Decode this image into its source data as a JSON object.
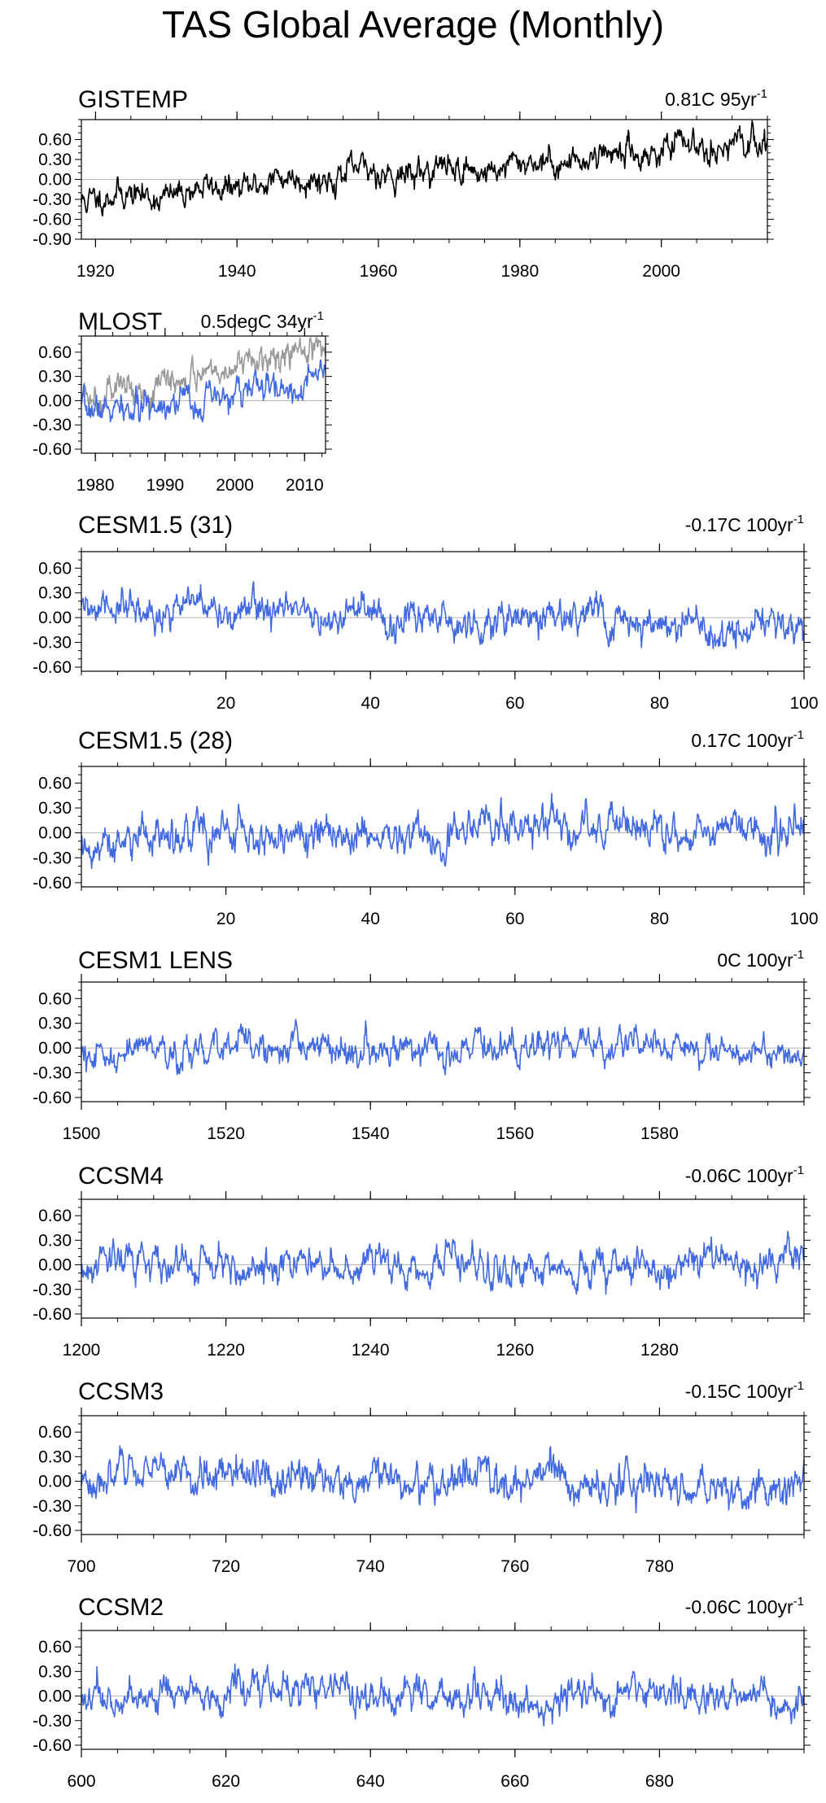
{
  "figure_title": "TAS Global Average (Monthly)",
  "colors": {
    "obs_line": "#000000",
    "model_line": "#4169e1",
    "alt_line": "#999999",
    "zero_line": "#b4b4b4",
    "frame": "#000000"
  },
  "chart_data": [
    {
      "type": "line",
      "title": "GISTEMP",
      "trend_value": "0.81C",
      "trend_unit": "95yr",
      "trend_sup": "-1",
      "xlim": [
        1918,
        2015
      ],
      "ylim": [
        -0.9,
        0.9
      ],
      "yticks": [
        0.6,
        0.3,
        0.0,
        -0.3,
        -0.6,
        -0.9
      ],
      "ytick_labels": [
        "0.60",
        "0.30",
        "0.00",
        "-0.30",
        "-0.60",
        "-0.90"
      ],
      "xticks": [
        1920,
        1940,
        1960,
        1980,
        2000
      ],
      "xtick_labels": [
        "1920",
        "1940",
        "1960",
        "1980",
        "2000"
      ],
      "series": [
        {
          "name": "GISTEMP",
          "color": "#000000",
          "trend": 0.0085,
          "intercept": -0.28,
          "t0": 1918,
          "noise": 0.11,
          "seed": 11
        }
      ]
    },
    {
      "type": "line",
      "title": "MLOST",
      "trend_value": "0.5degC",
      "trend_unit": "34yr",
      "trend_sup": "-1",
      "xlim": [
        1978,
        2013
      ],
      "ylim": [
        -0.65,
        0.8
      ],
      "yticks": [
        0.6,
        0.3,
        0.0,
        -0.3,
        -0.6
      ],
      "ytick_labels": [
        "0.60",
        "0.30",
        "0.00",
        "-0.30",
        "-0.60"
      ],
      "xticks": [
        1980,
        1990,
        2000,
        2010
      ],
      "xtick_labels": [
        "1980",
        "1990",
        "2000",
        "2010"
      ],
      "series": [
        {
          "name": "MLOST",
          "color": "#999999",
          "trend": 0.0147,
          "intercept": 0.1,
          "t0": 1978,
          "noise": 0.1,
          "seed": 5
        },
        {
          "name": "MLOST anomaly",
          "color": "#4169e1",
          "trend": 0.0147,
          "intercept": -0.22,
          "t0": 1978,
          "noise": 0.1,
          "seed": 7
        }
      ]
    },
    {
      "type": "line",
      "title": "CESM1.5 (31)",
      "trend_value": "-0.17C",
      "trend_unit": "100yr",
      "trend_sup": "-1",
      "xlim": [
        0,
        100
      ],
      "ylim": [
        -0.65,
        0.8
      ],
      "yticks": [
        0.6,
        0.3,
        0.0,
        -0.3,
        -0.6
      ],
      "ytick_labels": [
        "0.60",
        "0.30",
        "0.00",
        "-0.30",
        "-0.60"
      ],
      "xticks": [
        20,
        40,
        60,
        80,
        100
      ],
      "xtick_labels": [
        "20",
        "40",
        "60",
        "80",
        "100"
      ],
      "series": [
        {
          "name": "CESM1.5 (31)",
          "color": "#4169e1",
          "trend": -0.0017,
          "intercept": 0.09,
          "t0": 0,
          "noise": 0.11,
          "seed": 31
        }
      ]
    },
    {
      "type": "line",
      "title": "CESM1.5 (28)",
      "trend_value": "0.17C",
      "trend_unit": "100yr",
      "trend_sup": "-1",
      "xlim": [
        0,
        100
      ],
      "ylim": [
        -0.65,
        0.8
      ],
      "yticks": [
        0.6,
        0.3,
        0.0,
        -0.3,
        -0.6
      ],
      "ytick_labels": [
        "0.60",
        "0.30",
        "0.00",
        "-0.30",
        "-0.60"
      ],
      "xticks": [
        20,
        40,
        60,
        80,
        100
      ],
      "xtick_labels": [
        "20",
        "40",
        "60",
        "80",
        "100"
      ],
      "series": [
        {
          "name": "CESM1.5 (28)",
          "color": "#4169e1",
          "trend": 0.0017,
          "intercept": -0.08,
          "t0": 0,
          "noise": 0.12,
          "seed": 28
        }
      ]
    },
    {
      "type": "line",
      "title": "CESM1 LENS",
      "trend_value": "0C",
      "trend_unit": "100yr",
      "trend_sup": "-1",
      "xlim": [
        1500,
        1600
      ],
      "ylim": [
        -0.65,
        0.8
      ],
      "yticks": [
        0.6,
        0.3,
        0.0,
        -0.3,
        -0.6
      ],
      "ytick_labels": [
        "0.60",
        "0.30",
        "0.00",
        "-0.30",
        "-0.60"
      ],
      "xticks": [
        1500,
        1520,
        1540,
        1560,
        1580
      ],
      "xtick_labels": [
        "1500",
        "1520",
        "1540",
        "1560",
        "1580"
      ],
      "series": [
        {
          "name": "CESM1 LENS",
          "color": "#4169e1",
          "trend": 0.0,
          "intercept": 0.0,
          "t0": 1500,
          "noise": 0.1,
          "seed": 15
        }
      ]
    },
    {
      "type": "line",
      "title": "CCSM4",
      "trend_value": "-0.06C",
      "trend_unit": "100yr",
      "trend_sup": "-1",
      "xlim": [
        1200,
        1300
      ],
      "ylim": [
        -0.65,
        0.8
      ],
      "yticks": [
        0.6,
        0.3,
        0.0,
        -0.3,
        -0.6
      ],
      "ytick_labels": [
        "0.60",
        "0.30",
        "0.00",
        "-0.30",
        "-0.60"
      ],
      "xticks": [
        1200,
        1220,
        1240,
        1260,
        1280
      ],
      "xtick_labels": [
        "1200",
        "1220",
        "1240",
        "1260",
        "1280"
      ],
      "series": [
        {
          "name": "CCSM4",
          "color": "#4169e1",
          "trend": -0.0006,
          "intercept": 0.03,
          "t0": 1200,
          "noise": 0.11,
          "seed": 4
        }
      ]
    },
    {
      "type": "line",
      "title": "CCSM3",
      "trend_value": "-0.15C",
      "trend_unit": "100yr",
      "trend_sup": "-1",
      "xlim": [
        700,
        800
      ],
      "ylim": [
        -0.65,
        0.8
      ],
      "yticks": [
        0.6,
        0.3,
        0.0,
        -0.3,
        -0.6
      ],
      "ytick_labels": [
        "0.60",
        "0.30",
        "0.00",
        "-0.30",
        "-0.60"
      ],
      "xticks": [
        700,
        720,
        740,
        760,
        780
      ],
      "xtick_labels": [
        "700",
        "720",
        "740",
        "760",
        "780"
      ],
      "series": [
        {
          "name": "CCSM3",
          "color": "#4169e1",
          "trend": -0.0015,
          "intercept": 0.08,
          "t0": 700,
          "noise": 0.12,
          "seed": 3
        }
      ]
    },
    {
      "type": "line",
      "title": "CCSM2",
      "trend_value": "-0.06C",
      "trend_unit": "100yr",
      "trend_sup": "-1",
      "xlim": [
        600,
        700
      ],
      "ylim": [
        -0.65,
        0.8
      ],
      "yticks": [
        0.6,
        0.3,
        0.0,
        -0.3,
        -0.6
      ],
      "ytick_labels": [
        "0.60",
        "0.30",
        "0.00",
        "-0.30",
        "-0.60"
      ],
      "xticks": [
        600,
        620,
        640,
        660,
        680
      ],
      "xtick_labels": [
        "600",
        "620",
        "640",
        "660",
        "680"
      ],
      "series": [
        {
          "name": "CCSM2",
          "color": "#4169e1",
          "trend": -0.0006,
          "intercept": 0.03,
          "t0": 600,
          "noise": 0.11,
          "seed": 2
        }
      ]
    }
  ]
}
